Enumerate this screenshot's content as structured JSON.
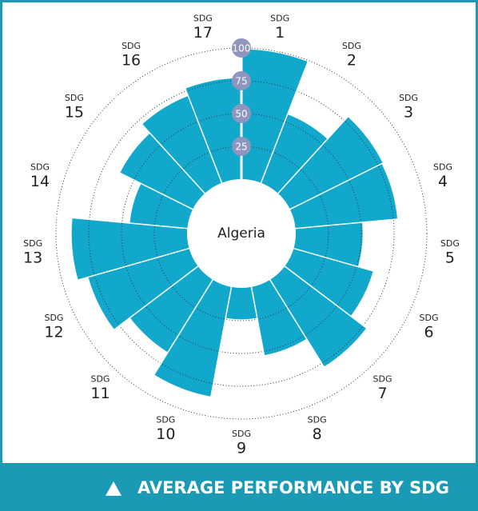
{
  "chart_data": {
    "type": "polar_bar",
    "title": "AVERAGE PERFORMANCE BY SDG",
    "center_label": "Algeria",
    "category_prefix": "SDG",
    "categories": [
      "1",
      "2",
      "3",
      "4",
      "5",
      "6",
      "7",
      "8",
      "9",
      "10",
      "11",
      "12",
      "13",
      "14",
      "15",
      "16",
      "17"
    ],
    "values": [
      99,
      56,
      79,
      78,
      51,
      63,
      78,
      53,
      24,
      85,
      65,
      80,
      88,
      44,
      62,
      71,
      77
    ],
    "color": "#12a8cc",
    "ylim": [
      0,
      100
    ],
    "yticks": [
      25,
      50,
      75,
      100
    ],
    "grid": true
  }
}
